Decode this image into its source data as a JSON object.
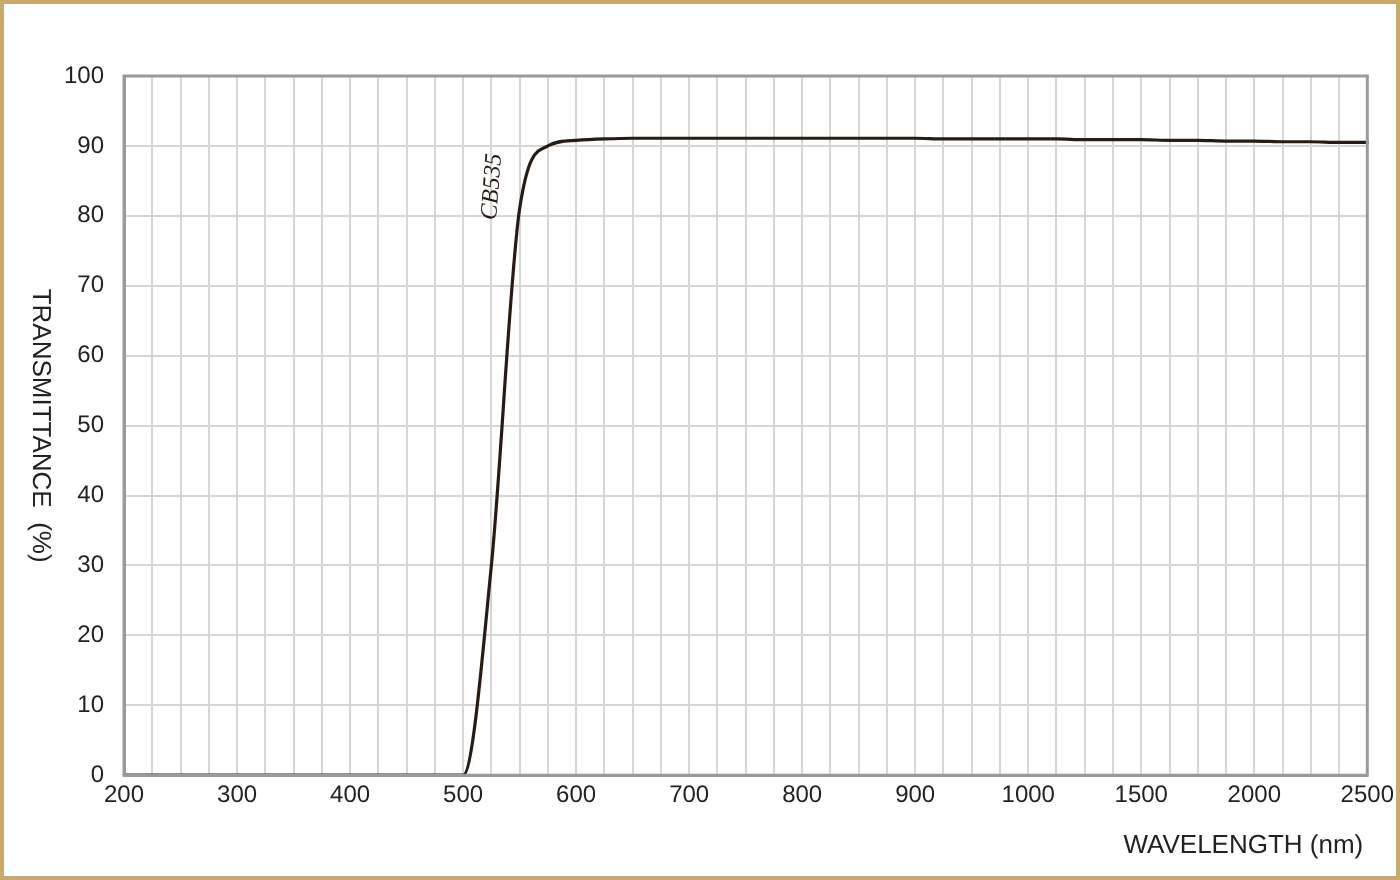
{
  "chart_data": {
    "type": "line",
    "xlabel": "WAVELENGTH (nm)",
    "ylabel": "TRANSMITTANCE  (%)",
    "categories": [
      "200",
      null,
      null,
      null,
      "300",
      null,
      null,
      null,
      "400",
      null,
      null,
      null,
      "500",
      null,
      null,
      null,
      "600",
      null,
      null,
      null,
      "700",
      null,
      null,
      null,
      "800",
      null,
      null,
      null,
      "900",
      null,
      null,
      null,
      "1000",
      null,
      null,
      null,
      "1500",
      null,
      null,
      null,
      "2000",
      null,
      null,
      null,
      "2500"
    ],
    "series": [
      {
        "name": "CB535",
        "color": "#2a1a14",
        "values": [
          0,
          0,
          0,
          0,
          0,
          0,
          0,
          0,
          0,
          0,
          0,
          0,
          0,
          30,
          81,
          90,
          90.8,
          91,
          91.1,
          91.1,
          91.1,
          91.1,
          91.1,
          91.1,
          91.1,
          91.1,
          91.1,
          91.1,
          91.1,
          91,
          91,
          91,
          91,
          91,
          90.9,
          90.9,
          90.9,
          90.8,
          90.8,
          90.7,
          90.7,
          90.6,
          90.6,
          90.5,
          90.5
        ]
      }
    ],
    "ylim": [
      0,
      100
    ],
    "yticks": [
      0,
      10,
      20,
      30,
      40,
      50,
      60,
      70,
      80,
      90,
      100
    ],
    "grid": true,
    "legend": false,
    "marker": "none",
    "line_style": "solid"
  }
}
